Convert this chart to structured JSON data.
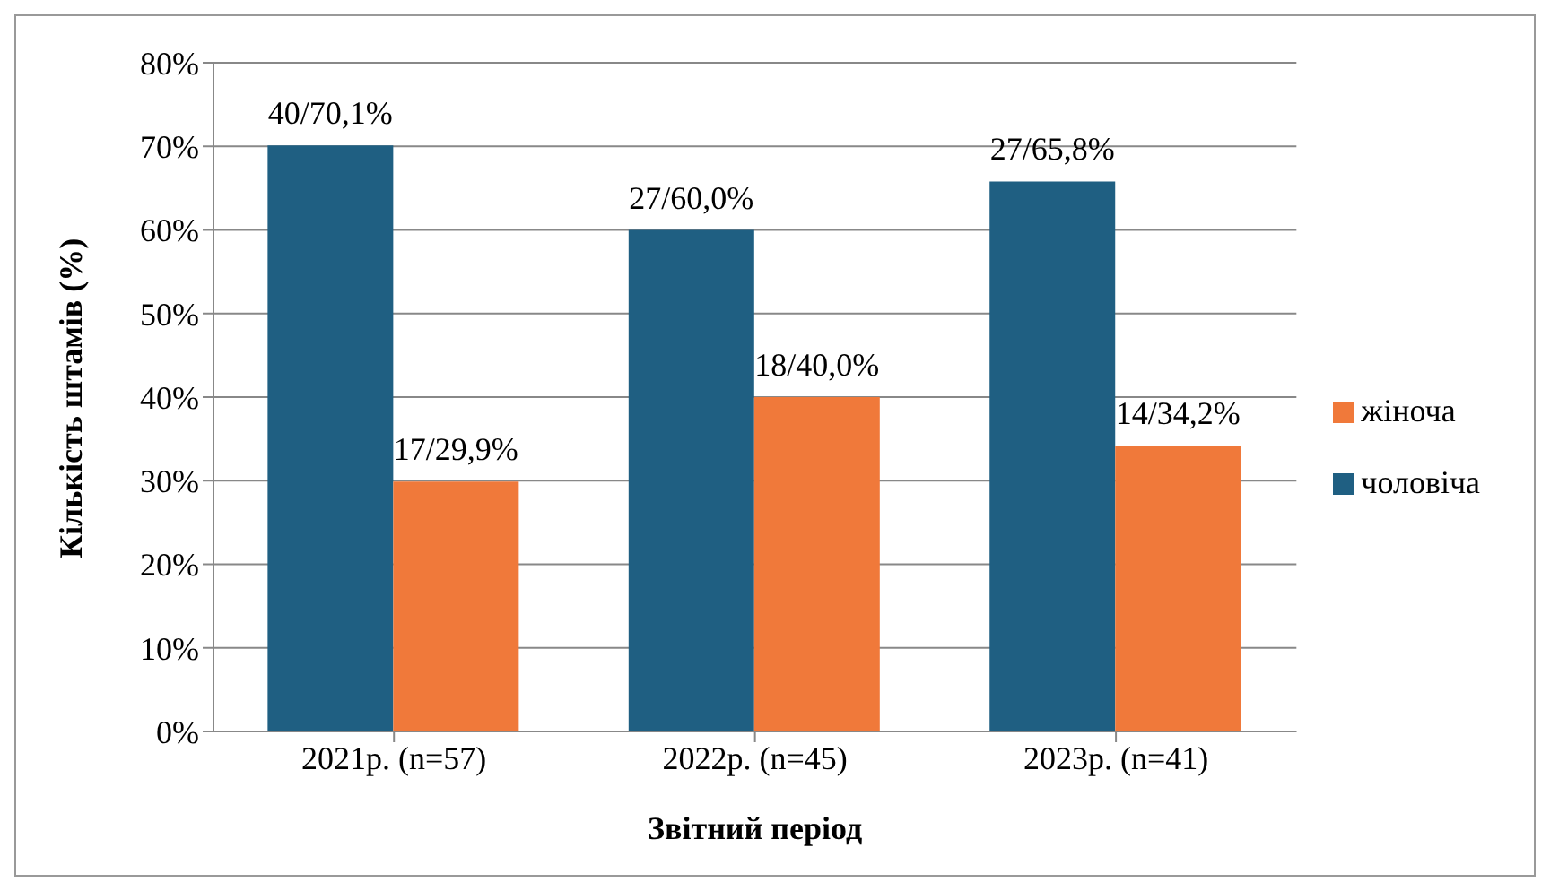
{
  "chart_data": {
    "type": "bar",
    "xlabel": "Звітний період",
    "ylabel": "Кількість штамів (%)",
    "categories": [
      "2021р. (n=57)",
      "2022р. (n=45)",
      "2023р. (n=41)"
    ],
    "series": [
      {
        "name": "чоловіча",
        "color": "#1f5f82",
        "values": [
          70.1,
          60.0,
          65.8
        ],
        "value_labels": [
          "40/70,1%",
          "27/60,0%",
          "27/65,8%"
        ]
      },
      {
        "name": "жіноча",
        "color": "#f0793a",
        "values": [
          29.9,
          40.0,
          34.2
        ],
        "value_labels": [
          "17/29,9%",
          "18/40,0%",
          "14/34,2%"
        ]
      }
    ],
    "ylim": [
      0,
      80
    ],
    "yticks": [
      {
        "value": 0,
        "label": "0%"
      },
      {
        "value": 10,
        "label": "10%"
      },
      {
        "value": 20,
        "label": "20%"
      },
      {
        "value": 30,
        "label": "30%"
      },
      {
        "value": 40,
        "label": "40%"
      },
      {
        "value": 50,
        "label": "50%"
      },
      {
        "value": 60,
        "label": "60%"
      },
      {
        "value": 70,
        "label": "70%"
      },
      {
        "value": 80,
        "label": "80%"
      }
    ],
    "grid": "y",
    "legend": "right"
  }
}
